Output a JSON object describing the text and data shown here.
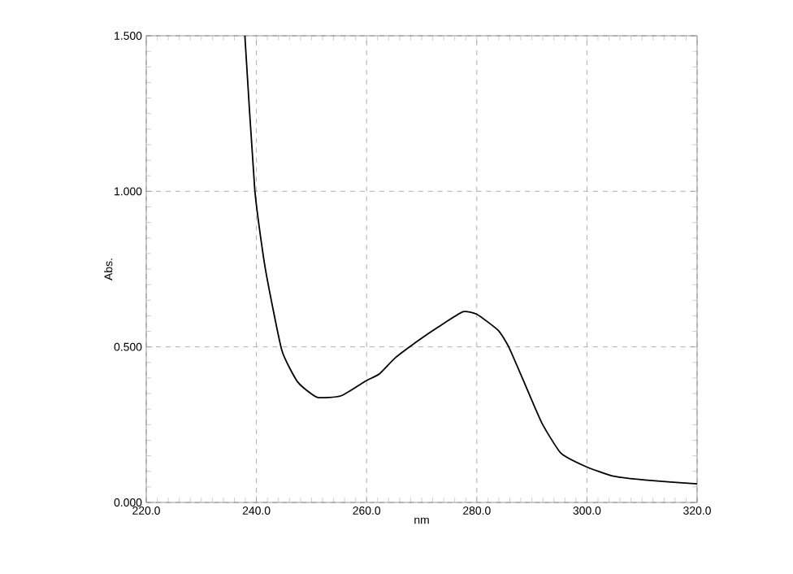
{
  "chart_data": {
    "type": "line",
    "xlabel": "nm",
    "ylabel": "Abs.",
    "x": [
      237.9,
      239.7,
      241.6,
      244.6,
      247.5,
      251.0,
      255.4,
      259.8,
      262.3,
      265.2,
      269.2,
      273.1,
      277.5,
      280.0,
      283.9,
      285.8,
      288.8,
      291.8,
      295.2,
      299.6,
      304.6,
      310.5,
      320.0
    ],
    "series": [
      {
        "color": "#000000",
        "values": [
          1.5,
          1.005,
          0.753,
          0.49,
          0.387,
          0.338,
          0.343,
          0.39,
          0.413,
          0.465,
          0.518,
          0.565,
          0.613,
          0.605,
          0.553,
          0.5,
          0.378,
          0.256,
          0.16,
          0.117,
          0.085,
          0.072,
          0.06
        ]
      }
    ],
    "xlim": [
      220,
      320
    ],
    "ylim": [
      0,
      1.5
    ],
    "xticks": [
      {
        "value": 220,
        "label": "220.0"
      },
      {
        "value": 240,
        "label": "240.0"
      },
      {
        "value": 260,
        "label": "260.0"
      },
      {
        "value": 280,
        "label": "280.0"
      },
      {
        "value": 300,
        "label": "300.0"
      },
      {
        "value": 320,
        "label": "320.0"
      }
    ],
    "yticks": [
      {
        "value": 0,
        "label": "0.000"
      },
      {
        "value": 0.5,
        "label": "0.500"
      },
      {
        "value": 1.0,
        "label": "1.000"
      },
      {
        "value": 1.5,
        "label": "1.500"
      }
    ],
    "grid": true,
    "marker": "none",
    "line_style": "solid"
  }
}
